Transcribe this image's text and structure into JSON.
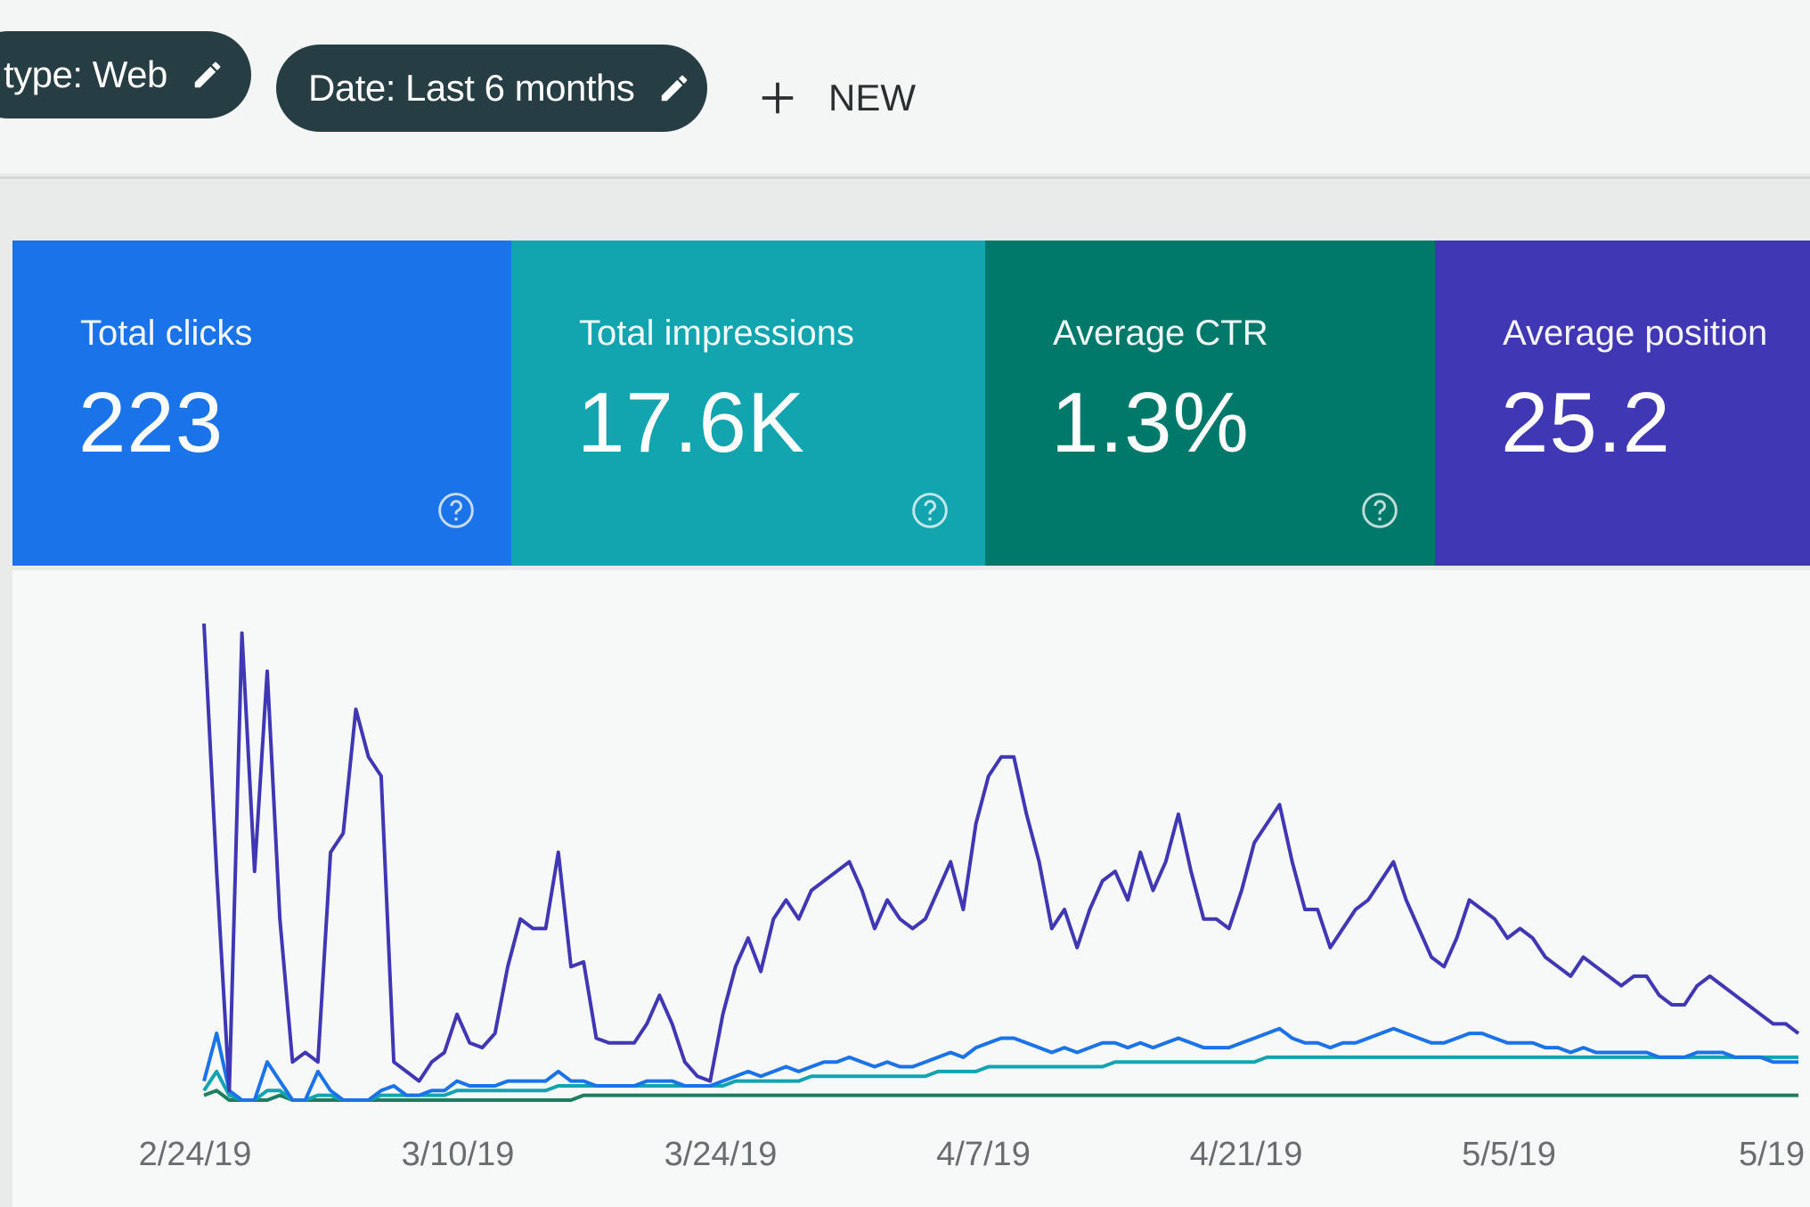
{
  "filters": {
    "type_chip": "type: Web",
    "date_chip": "Date: Last 6 months",
    "new_label": "NEW"
  },
  "metrics": [
    {
      "label": "Total clicks",
      "value": "223",
      "color": "#1a73e8"
    },
    {
      "label": "Total impressions",
      "value": "17.6K",
      "color": "#12a4af"
    },
    {
      "label": "Average CTR",
      "value": "1.3%",
      "color": "#00796b"
    },
    {
      "label": "Average position",
      "value": "25.2",
      "color": "#3f37b4"
    }
  ],
  "icons": {
    "edit": "pencil-icon",
    "add": "plus-icon",
    "help": "help-circle-icon"
  },
  "chart_data": {
    "type": "line",
    "x_tick_labels": [
      "2/24/19",
      "3/10/19",
      "3/24/19",
      "4/7/19",
      "4/21/19",
      "5/5/19",
      "5/19"
    ],
    "series": [
      {
        "color": "#3f37b4",
        "values": [
          100,
          48,
          2,
          98,
          48,
          90,
          38,
          8,
          10,
          8,
          52,
          56,
          82,
          72,
          68,
          8,
          6,
          4,
          8,
          10,
          18,
          12,
          11,
          14,
          28,
          38,
          36,
          36,
          52,
          28,
          29,
          13,
          12,
          12,
          12,
          16,
          22,
          16,
          8,
          5,
          4,
          18,
          28,
          34,
          27,
          38,
          42,
          38,
          44,
          46,
          48,
          50,
          44,
          36,
          42,
          38,
          36,
          38,
          44,
          50,
          40,
          58,
          68,
          72,
          72,
          60,
          50,
          36,
          40,
          32,
          40,
          46,
          48,
          42,
          52,
          44,
          50,
          60,
          48,
          38,
          38,
          36,
          44,
          54,
          58,
          62,
          50,
          40,
          40,
          32,
          36,
          40,
          42,
          46,
          50,
          42,
          36,
          30,
          28,
          34,
          42,
          40,
          38,
          34,
          36,
          34,
          30,
          28,
          26,
          30,
          28,
          26,
          24,
          26,
          26,
          22,
          20,
          20,
          24,
          26,
          24,
          22,
          20,
          18,
          16,
          16,
          14
        ]
      },
      {
        "color": "#1a73e8",
        "values": [
          4,
          14,
          2,
          0,
          0,
          8,
          4,
          0,
          0,
          6,
          2,
          0,
          0,
          0,
          2,
          3,
          1,
          1,
          2,
          2,
          4,
          3,
          3,
          3,
          4,
          4,
          4,
          4,
          6,
          4,
          4,
          3,
          3,
          3,
          3,
          4,
          4,
          4,
          3,
          3,
          3,
          4,
          5,
          6,
          5,
          6,
          7,
          6,
          7,
          8,
          8,
          9,
          8,
          7,
          8,
          7,
          7,
          8,
          9,
          10,
          9,
          11,
          12,
          13,
          13,
          12,
          11,
          10,
          11,
          10,
          11,
          12,
          12,
          11,
          12,
          11,
          12,
          13,
          12,
          11,
          11,
          11,
          12,
          13,
          14,
          15,
          13,
          12,
          12,
          11,
          12,
          12,
          13,
          14,
          15,
          14,
          13,
          12,
          12,
          13,
          14,
          14,
          13,
          12,
          12,
          12,
          11,
          11,
          10,
          11,
          10,
          10,
          10,
          10,
          10,
          9,
          9,
          9,
          10,
          10,
          10,
          9,
          9,
          9,
          8,
          8,
          8
        ]
      },
      {
        "color": "#12a4af",
        "values": [
          2,
          6,
          1,
          0,
          0,
          2,
          2,
          0,
          0,
          1,
          1,
          0,
          0,
          0,
          1,
          1,
          1,
          1,
          1,
          1,
          2,
          2,
          2,
          2,
          2,
          2,
          2,
          2,
          3,
          3,
          3,
          3,
          3,
          3,
          3,
          3,
          3,
          3,
          3,
          3,
          3,
          3,
          4,
          4,
          4,
          4,
          4,
          4,
          5,
          5,
          5,
          5,
          5,
          5,
          5,
          5,
          5,
          5,
          6,
          6,
          6,
          6,
          7,
          7,
          7,
          7,
          7,
          7,
          7,
          7,
          7,
          7,
          8,
          8,
          8,
          8,
          8,
          8,
          8,
          8,
          8,
          8,
          8,
          8,
          9,
          9,
          9,
          9,
          9,
          9,
          9,
          9,
          9,
          9,
          9,
          9,
          9,
          9,
          9,
          9,
          9,
          9,
          9,
          9,
          9,
          9,
          9,
          9,
          9,
          9,
          9,
          9,
          9,
          9,
          9,
          9,
          9,
          9,
          9,
          9,
          9,
          9,
          9,
          9,
          9,
          9,
          9
        ]
      },
      {
        "color": "#1e7d60",
        "values": [
          1,
          2,
          0,
          0,
          0,
          0,
          1,
          0,
          0,
          0,
          0,
          0,
          0,
          0,
          0,
          0,
          0,
          0,
          0,
          0,
          0,
          0,
          0,
          0,
          0,
          0,
          0,
          0,
          0,
          0,
          1,
          1,
          1,
          1,
          1,
          1,
          1,
          1,
          1,
          1,
          1,
          1,
          1,
          1,
          1,
          1,
          1,
          1,
          1,
          1,
          1,
          1,
          1,
          1,
          1,
          1,
          1,
          1,
          1,
          1,
          1,
          1,
          1,
          1,
          1,
          1,
          1,
          1,
          1,
          1,
          1,
          1,
          1,
          1,
          1,
          1,
          1,
          1,
          1,
          1,
          1,
          1,
          1,
          1,
          1,
          1,
          1,
          1,
          1,
          1,
          1,
          1,
          1,
          1,
          1,
          1,
          1,
          1,
          1,
          1,
          1,
          1,
          1,
          1,
          1,
          1,
          1,
          1,
          1,
          1,
          1,
          1,
          1,
          1,
          1,
          1,
          1,
          1,
          1,
          1,
          1,
          1,
          1,
          1,
          1,
          1,
          1
        ]
      }
    ]
  }
}
